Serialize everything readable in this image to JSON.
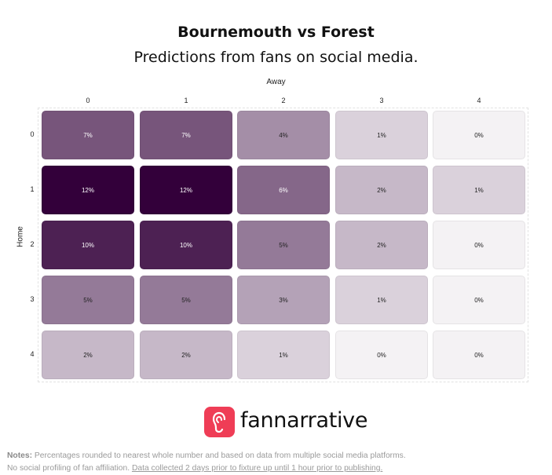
{
  "title": "Bournemouth vs Forest",
  "subtitle": "Predictions from fans on social media.",
  "chart_data": {
    "type": "heatmap",
    "x_axis_label": "Away",
    "y_axis_label": "Home",
    "x_categories": [
      "0",
      "1",
      "2",
      "3",
      "4"
    ],
    "y_categories": [
      "0",
      "1",
      "2",
      "3",
      "4"
    ],
    "values": [
      [
        7,
        7,
        4,
        1,
        0
      ],
      [
        12,
        12,
        6,
        2,
        1
      ],
      [
        10,
        10,
        5,
        2,
        0
      ],
      [
        5,
        5,
        3,
        1,
        0
      ],
      [
        2,
        2,
        1,
        0,
        0
      ]
    ],
    "labels": [
      [
        "7%",
        "7%",
        "4%",
        "1%",
        "0%"
      ],
      [
        "12%",
        "12%",
        "6%",
        "2%",
        "1%"
      ],
      [
        "10%",
        "10%",
        "5%",
        "2%",
        "0%"
      ],
      [
        "5%",
        "5%",
        "3%",
        "1%",
        "0%"
      ],
      [
        "2%",
        "2%",
        "1%",
        "0%",
        "0%"
      ]
    ],
    "color_scale": [
      "#f4f2f4",
      "#33003a"
    ]
  },
  "logo": {
    "text": "fannarrative",
    "icon": "ear-icon",
    "color": "#ef3d56"
  },
  "notes": {
    "label": "Notes:",
    "line1": " Percentages rounded to nearest whole number and based on data from multiple social media platforms.",
    "line2_plain": "No social profiling of fan affiliation. ",
    "line2_underlined": "Data collected 2 days prior to fixture up until 1 hour prior to publishing."
  }
}
